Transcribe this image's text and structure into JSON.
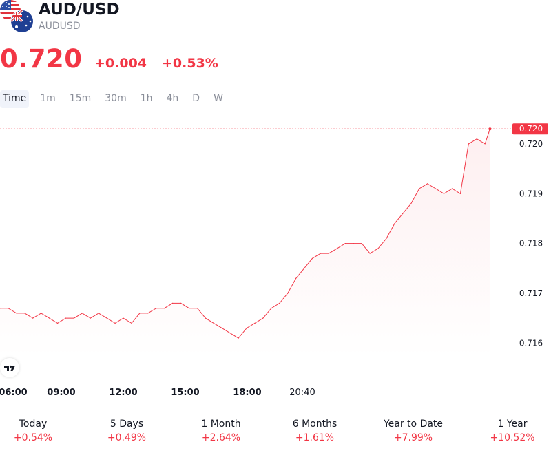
{
  "header": {
    "title": "AUD/USD",
    "symbol": "AUDUSD",
    "price": "0.720",
    "change_abs": "+0.004",
    "change_pct": "+0.53%"
  },
  "tabs": [
    {
      "label": "Time",
      "active": true
    },
    {
      "label": "1m"
    },
    {
      "label": "15m"
    },
    {
      "label": "30m"
    },
    {
      "label": "1h"
    },
    {
      "label": "4h"
    },
    {
      "label": "D"
    },
    {
      "label": "W"
    }
  ],
  "colors": {
    "up": "#f23645",
    "text": "#131722",
    "muted": "#8a8e99"
  },
  "icons": {
    "flags": "usd-aud-flags-icon",
    "logo": "tradingview-logo-icon"
  },
  "chart_data": {
    "type": "area",
    "x_ticks": [
      "06:00",
      "09:00",
      "12:00",
      "15:00",
      "18:00",
      "20:40"
    ],
    "y_ticks": [
      "0.720",
      "0.719",
      "0.718",
      "0.717",
      "0.716"
    ],
    "ylim": [
      0.7157,
      0.7204
    ],
    "xlim": [
      6.0,
      21.5
    ],
    "last_price_label": "0.720",
    "x": [
      6.0,
      6.25,
      6.5,
      6.75,
      7.0,
      7.25,
      7.5,
      7.75,
      8.0,
      8.25,
      8.5,
      8.75,
      9.0,
      9.25,
      9.5,
      9.75,
      10.0,
      10.25,
      10.5,
      10.75,
      11.0,
      11.25,
      11.5,
      11.75,
      12.0,
      12.25,
      12.5,
      12.75,
      13.0,
      13.25,
      13.5,
      13.75,
      14.0,
      14.25,
      14.5,
      14.75,
      15.0,
      15.25,
      15.5,
      15.75,
      16.0,
      16.25,
      16.5,
      16.75,
      17.0,
      17.25,
      17.5,
      17.75,
      18.0,
      18.25,
      18.5,
      18.75,
      19.0,
      19.25,
      19.5,
      19.75,
      20.0,
      20.25,
      20.5,
      20.75,
      20.9
    ],
    "values": [
      0.7167,
      0.7167,
      0.7166,
      0.7166,
      0.7165,
      0.7166,
      0.7165,
      0.7164,
      0.7165,
      0.7165,
      0.7166,
      0.7165,
      0.7166,
      0.7165,
      0.7164,
      0.7165,
      0.7164,
      0.7166,
      0.7166,
      0.7167,
      0.7167,
      0.7168,
      0.7168,
      0.7167,
      0.7167,
      0.7165,
      0.7164,
      0.7163,
      0.7162,
      0.7161,
      0.7163,
      0.7164,
      0.7165,
      0.7167,
      0.7168,
      0.717,
      0.7173,
      0.7175,
      0.7177,
      0.7178,
      0.7178,
      0.7179,
      0.718,
      0.718,
      0.718,
      0.7178,
      0.7179,
      0.7181,
      0.7184,
      0.7186,
      0.7188,
      0.7191,
      0.7192,
      0.7191,
      0.719,
      0.7191,
      0.719,
      0.72,
      0.7201,
      0.72,
      0.7203
    ]
  },
  "performance": [
    {
      "label": "Today",
      "value": "+0.54%"
    },
    {
      "label": "5 Days",
      "value": "+0.49%"
    },
    {
      "label": "1 Month",
      "value": "+2.64%"
    },
    {
      "label": "6 Months",
      "value": "+1.61%"
    },
    {
      "label": "Year to Date",
      "value": "+7.99%"
    },
    {
      "label": "1 Year",
      "value": "+10.52%"
    }
  ]
}
